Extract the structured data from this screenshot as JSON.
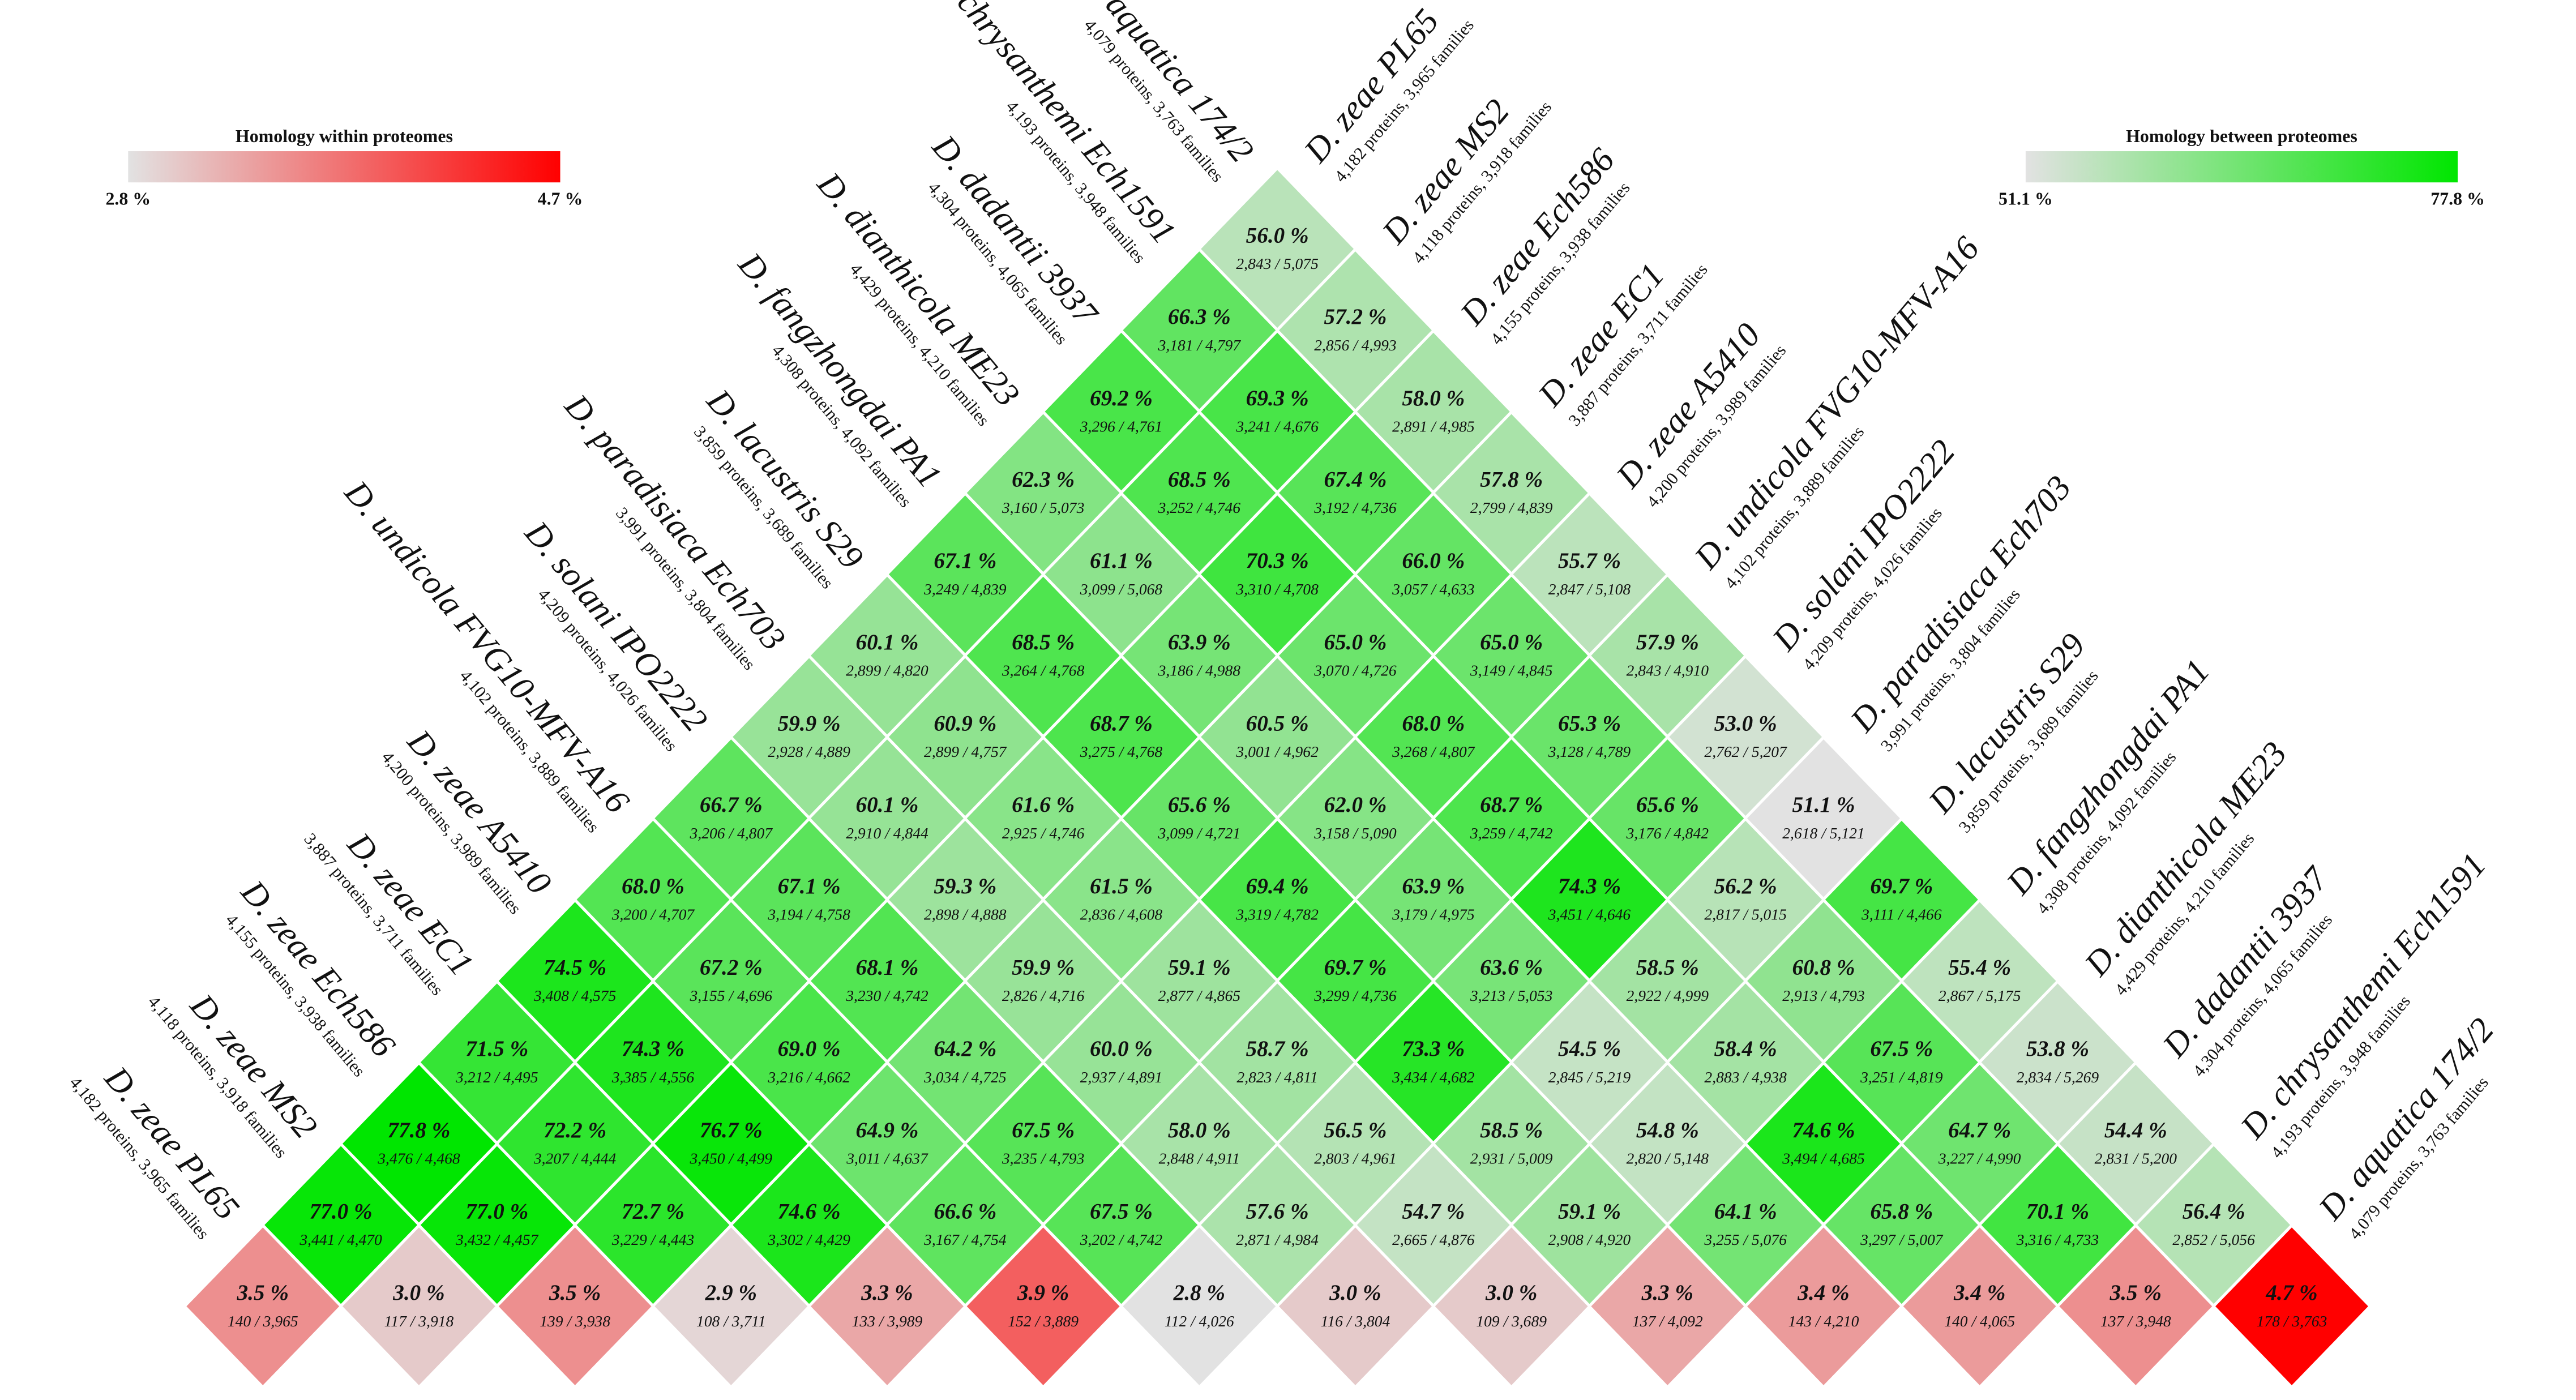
{
  "chart_data": {
    "type": "triangular-heatmap",
    "organisms": [
      {
        "name": "D. zeae PL65",
        "info": "4,182 proteins, 3,965 families"
      },
      {
        "name": "D. zeae MS2",
        "info": "4,118 proteins, 3,918 families"
      },
      {
        "name": "D. zeae Ech586",
        "info": "4,155 proteins, 3,938 families"
      },
      {
        "name": "D. zeae EC1",
        "info": "3,887 proteins, 3,711 families"
      },
      {
        "name": "D. zeae A5410",
        "info": "4,200 proteins, 3,989 families"
      },
      {
        "name": "D. undicola FVG10-MFV-A16",
        "info": "4,102 proteins, 3,889 families"
      },
      {
        "name": "D. solani IPO2222",
        "info": "4,209 proteins, 4,026 families"
      },
      {
        "name": "D. paradisiaca Ech703",
        "info": "3,991 proteins, 3,804 families"
      },
      {
        "name": "D. lacustris S29",
        "info": "3,859 proteins, 3,689 families"
      },
      {
        "name": "D. fangzhongdai PA1",
        "info": "4,308 proteins, 4,092 families"
      },
      {
        "name": "D. dianthicola ME23",
        "info": "4,429 proteins, 4,210 families"
      },
      {
        "name": "D. dadantii 3937",
        "info": "4,304 proteins, 4,065 families"
      },
      {
        "name": "D. chrysanthemi Ech1591",
        "info": "4,193 proteins, 3,948 families"
      },
      {
        "name": "D. aquatica 174/2",
        "info": "4,079 proteins, 3,763 families"
      }
    ],
    "within": {
      "legend": {
        "title": "Homology within proteomes",
        "min": {
          "value": 2.8,
          "label": "2.8 %"
        },
        "max": {
          "value": 4.7,
          "label": "4.7 %"
        },
        "colors": [
          "#e2e2e2",
          "#ff0000"
        ]
      },
      "values": [
        3.5,
        3.0,
        3.5,
        2.9,
        3.3,
        3.9,
        2.8,
        3.0,
        3.0,
        3.3,
        3.4,
        3.4,
        3.5,
        4.7
      ],
      "value_labels": [
        "3.5 %",
        "3.0 %",
        "3.5 %",
        "2.9 %",
        "3.3 %",
        "3.9 %",
        "2.8 %",
        "3.0 %",
        "3.0 %",
        "3.3 %",
        "3.4 %",
        "3.4 %",
        "3.5 %",
        "4.7 %"
      ],
      "count_labels": [
        "140 / 3,965",
        "117 / 3,918",
        "139 / 3,938",
        "108 / 3,711",
        "133 / 3,989",
        "152 / 3,889",
        "112 / 4,026",
        "116 / 3,804",
        "109 / 3,689",
        "137 / 4,092",
        "143 / 4,210",
        "140 / 4,065",
        "137 / 3,948",
        "178 / 3,763"
      ]
    },
    "between": {
      "legend": {
        "title": "Homology between proteomes",
        "min": {
          "value": 51.1,
          "label": "51.1 %"
        },
        "max": {
          "value": 77.8,
          "label": "77.8 %"
        },
        "colors": [
          "#e2e2e2",
          "#00e600"
        ]
      },
      "rows": [
        {
          "values": [
            77.0,
            77.0,
            72.7,
            74.6,
            66.6,
            67.5,
            57.6,
            54.7,
            59.1,
            64.1,
            65.8,
            70.1,
            56.4
          ],
          "value_labels": [
            "77.0 %",
            "77.0 %",
            "72.7 %",
            "74.6 %",
            "66.6 %",
            "67.5 %",
            "57.6 %",
            "54.7 %",
            "59.1 %",
            "64.1 %",
            "65.8 %",
            "70.1 %",
            "56.4 %"
          ],
          "count_labels": [
            "3,441 / 4,470",
            "3,432 / 4,457",
            "3,229 / 4,443",
            "3,302 / 4,429",
            "3,167 / 4,754",
            "3,202 / 4,742",
            "2,871 / 4,984",
            "2,665 / 4,876",
            "2,908 / 4,920",
            "3,255 / 5,076",
            "3,297 / 5,007",
            "3,316 / 4,733",
            "2,852 / 5,056"
          ]
        },
        {
          "values": [
            77.8,
            72.2,
            76.7,
            64.9,
            67.5,
            58.0,
            56.5,
            58.5,
            54.8,
            74.6,
            64.7,
            54.4
          ],
          "value_labels": [
            "77.8 %",
            "72.2 %",
            "76.7 %",
            "64.9 %",
            "67.5 %",
            "58.0 %",
            "56.5 %",
            "58.5 %",
            "54.8 %",
            "74.6 %",
            "64.7 %",
            "54.4 %"
          ],
          "count_labels": [
            "3,476 / 4,468",
            "3,207 / 4,444",
            "3,450 / 4,499",
            "3,011 / 4,637",
            "3,235 / 4,793",
            "2,848 / 4,911",
            "2,803 / 4,961",
            "2,931 / 5,009",
            "2,820 / 5,148",
            "3,494 / 4,685",
            "3,227 / 4,990",
            "2,831 / 5,200"
          ]
        },
        {
          "values": [
            71.5,
            74.3,
            69.0,
            64.2,
            60.0,
            58.7,
            73.3,
            54.5,
            58.4,
            67.5,
            53.8
          ],
          "value_labels": [
            "71.5 %",
            "74.3 %",
            "69.0 %",
            "64.2 %",
            "60.0 %",
            "58.7 %",
            "73.3 %",
            "54.5 %",
            "58.4 %",
            "67.5 %",
            "53.8 %"
          ],
          "count_labels": [
            "3,212 / 4,495",
            "3,385 / 4,556",
            "3,216 / 4,662",
            "3,034 / 4,725",
            "2,937 / 4,891",
            "2,823 / 4,811",
            "3,434 / 4,682",
            "2,845 / 5,219",
            "2,883 / 4,938",
            "3,251 / 4,819",
            "2,834 / 5,269"
          ]
        },
        {
          "values": [
            74.5,
            67.2,
            68.1,
            59.9,
            59.1,
            69.7,
            63.6,
            58.5,
            60.8,
            55.4
          ],
          "value_labels": [
            "74.5 %",
            "67.2 %",
            "68.1 %",
            "59.9 %",
            "59.1 %",
            "69.7 %",
            "63.6 %",
            "58.5 %",
            "60.8 %",
            "55.4 %"
          ],
          "count_labels": [
            "3,408 / 4,575",
            "3,155 / 4,696",
            "3,230 / 4,742",
            "2,826 / 4,716",
            "2,877 / 4,865",
            "3,299 / 4,736",
            "3,213 / 5,053",
            "2,922 / 4,999",
            "2,913 / 4,793",
            "2,867 / 5,175"
          ]
        },
        {
          "values": [
            68.0,
            67.1,
            59.3,
            61.5,
            69.4,
            63.9,
            74.3,
            56.2,
            69.7
          ],
          "value_labels": [
            "68.0 %",
            "67.1 %",
            "59.3 %",
            "61.5 %",
            "69.4 %",
            "63.9 %",
            "74.3 %",
            "56.2 %",
            "69.7 %"
          ],
          "count_labels": [
            "3,200 / 4,707",
            "3,194 / 4,758",
            "2,898 / 4,888",
            "2,836 / 4,608",
            "3,319 / 4,782",
            "3,179 / 4,975",
            "3,451 / 4,646",
            "2,817 / 5,015",
            "3,111 / 4,466"
          ]
        },
        {
          "values": [
            66.7,
            60.1,
            61.6,
            65.6,
            62.0,
            68.7,
            65.6,
            51.1
          ],
          "value_labels": [
            "66.7 %",
            "60.1 %",
            "61.6 %",
            "65.6 %",
            "62.0 %",
            "68.7 %",
            "65.6 %",
            "51.1 %"
          ],
          "count_labels": [
            "3,206 / 4,807",
            "2,910 / 4,844",
            "2,925 / 4,746",
            "3,099 / 4,721",
            "3,158 / 5,090",
            "3,259 / 4,742",
            "3,176 / 4,842",
            "2,618 / 5,121"
          ]
        },
        {
          "values": [
            59.9,
            60.9,
            68.7,
            60.5,
            68.0,
            65.3,
            53.0
          ],
          "value_labels": [
            "59.9 %",
            "60.9 %",
            "68.7 %",
            "60.5 %",
            "68.0 %",
            "65.3 %",
            "53.0 %"
          ],
          "count_labels": [
            "2,928 / 4,889",
            "2,899 / 4,757",
            "3,275 / 4,768",
            "3,001 / 4,962",
            "3,268 / 4,807",
            "3,128 / 4,789",
            "2,762 / 5,207"
          ]
        },
        {
          "values": [
            60.1,
            68.5,
            63.9,
            65.0,
            65.0,
            57.9
          ],
          "value_labels": [
            "60.1 %",
            "68.5 %",
            "63.9 %",
            "65.0 %",
            "65.0 %",
            "57.9 %"
          ],
          "count_labels": [
            "2,899 / 4,820",
            "3,264 / 4,768",
            "3,186 / 4,988",
            "3,070 / 4,726",
            "3,149 / 4,845",
            "2,843 / 4,910"
          ]
        },
        {
          "values": [
            67.1,
            61.1,
            70.3,
            66.0,
            55.7
          ],
          "value_labels": [
            "67.1 %",
            "61.1 %",
            "70.3 %",
            "66.0 %",
            "55.7 %"
          ],
          "count_labels": [
            "3,249 / 4,839",
            "3,099 / 5,068",
            "3,310 / 4,708",
            "3,057 / 4,633",
            "2,847 / 5,108"
          ]
        },
        {
          "values": [
            62.3,
            68.5,
            67.4,
            57.8
          ],
          "value_labels": [
            "62.3 %",
            "68.5 %",
            "67.4 %",
            "57.8 %"
          ],
          "count_labels": [
            "3,160 / 5,073",
            "3,252 / 4,746",
            "3,192 / 4,736",
            "2,799 / 4,839"
          ]
        },
        {
          "values": [
            69.2,
            69.3,
            58.0
          ],
          "value_labels": [
            "69.2 %",
            "69.3 %",
            "58.0 %"
          ],
          "count_labels": [
            "3,296 / 4,761",
            "3,241 / 4,676",
            "2,891 / 4,985"
          ]
        },
        {
          "values": [
            66.3,
            57.2
          ],
          "value_labels": [
            "66.3 %",
            "57.2 %"
          ],
          "count_labels": [
            "3,181 / 4,797",
            "2,856 / 4,993"
          ]
        },
        {
          "values": [
            56.0
          ],
          "value_labels": [
            "56.0 %"
          ],
          "count_labels": [
            "2,843 / 5,075"
          ]
        }
      ]
    }
  }
}
